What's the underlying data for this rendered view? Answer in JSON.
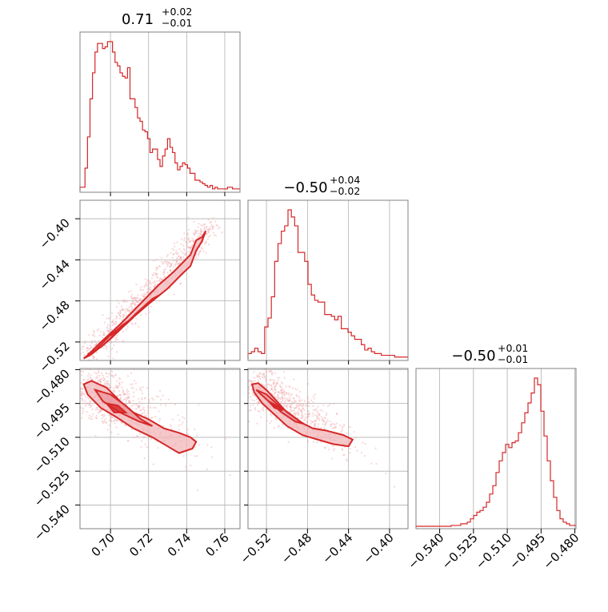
{
  "chart_data": {
    "type": "corner",
    "color": "#d62728",
    "fill_color": "#f2b6b8",
    "grid": true,
    "parameters": 3,
    "titles": [
      {
        "main": "0.71",
        "sup": "+0.02",
        "sub": "−0.01"
      },
      {
        "main": "−0.50",
        "sup": "+0.04",
        "sub": "−0.02"
      },
      {
        "main": "−0.50",
        "sup": "+0.01",
        "sub": "−0.01"
      }
    ],
    "ranges": [
      [
        0.684,
        0.768
      ],
      [
        -0.538,
        -0.382
      ],
      [
        -0.5505,
        -0.4795
      ]
    ],
    "ticks": [
      [
        {
          "v": 0.7,
          "l": "0.70"
        },
        {
          "v": 0.72,
          "l": "0.72"
        },
        {
          "v": 0.74,
          "l": "0.74"
        },
        {
          "v": 0.76,
          "l": "0.76"
        }
      ],
      [
        {
          "v": -0.52,
          "l": "−0.52"
        },
        {
          "v": -0.48,
          "l": "−0.48"
        },
        {
          "v": -0.44,
          "l": "−0.44"
        },
        {
          "v": -0.4,
          "l": "−0.40"
        }
      ],
      [
        {
          "v": -0.54,
          "l": "−0.540"
        },
        {
          "v": -0.525,
          "l": "−0.525"
        },
        {
          "v": -0.51,
          "l": "−0.510"
        },
        {
          "v": -0.495,
          "l": "−0.495"
        },
        {
          "v": -0.48,
          "l": "−0.480"
        }
      ]
    ],
    "hist1": {
      "edges_from": 0.684,
      "edges_to": 0.768,
      "counts": [
        0.02,
        0.02,
        0.13,
        0.31,
        0.53,
        0.68,
        0.8,
        0.85,
        0.85,
        0.82,
        0.83,
        0.86,
        0.86,
        0.8,
        0.74,
        0.72,
        0.68,
        0.66,
        0.65,
        0.71,
        0.53,
        0.53,
        0.48,
        0.42,
        0.4,
        0.35,
        0.34,
        0.3,
        0.22,
        0.24,
        0.24,
        0.18,
        0.14,
        0.2,
        0.24,
        0.3,
        0.25,
        0.22,
        0.16,
        0.12,
        0.14,
        0.16,
        0.15,
        0.13,
        0.1,
        0.1,
        0.06,
        0.06,
        0.05,
        0.04,
        0.03,
        0.02,
        0.03,
        0.01,
        0.02,
        0.01,
        0.01,
        0.01,
        0.01,
        0.02,
        0.02,
        0.01,
        0.01,
        0.01
      ]
    },
    "hist2": {
      "edges_from": -0.538,
      "edges_to": -0.382,
      "counts": [
        0.03,
        0.04,
        0.06,
        0.04,
        0.03,
        0.18,
        0.23,
        0.35,
        0.55,
        0.65,
        0.72,
        0.75,
        0.84,
        0.8,
        0.75,
        0.6,
        0.6,
        0.55,
        0.42,
        0.36,
        0.33,
        0.32,
        0.32,
        0.25,
        0.25,
        0.24,
        0.22,
        0.24,
        0.17,
        0.17,
        0.15,
        0.13,
        0.11,
        0.11,
        0.08,
        0.05,
        0.06,
        0.04,
        0.03,
        0.03,
        0.02,
        0.02,
        0.02,
        0.02,
        0.01,
        0.01,
        0.01,
        0.01
      ]
    },
    "hist3": {
      "edges_from": -0.5505,
      "edges_to": -0.4795,
      "counts": [
        0.005,
        0.005,
        0.005,
        0.005,
        0.005,
        0.005,
        0.005,
        0.005,
        0.005,
        0.005,
        0.005,
        0.01,
        0.01,
        0.01,
        0.02,
        0.02,
        0.03,
        0.05,
        0.07,
        0.09,
        0.1,
        0.12,
        0.15,
        0.2,
        0.25,
        0.33,
        0.4,
        0.45,
        0.5,
        0.48,
        0.51,
        0.52,
        0.57,
        0.63,
        0.69,
        0.75,
        0.81,
        0.9,
        0.86,
        0.7,
        0.55,
        0.4,
        0.28,
        0.18,
        0.1,
        0.05,
        0.03,
        0.02,
        0.01,
        0.01
      ]
    },
    "scatter_p1_p2": {
      "x_label_param": 0,
      "y_label_param": 1,
      "trend": {
        "x0": 0.684,
        "y0": -0.537,
        "x1": 0.751,
        "y1": -0.41
      },
      "outer_contour": [
        [
          0.686,
          -0.536
        ],
        [
          0.69,
          -0.532
        ],
        [
          0.7,
          -0.517
        ],
        [
          0.71,
          -0.499
        ],
        [
          0.72,
          -0.483
        ],
        [
          0.73,
          -0.468
        ],
        [
          0.738,
          -0.453
        ],
        [
          0.742,
          -0.446
        ],
        [
          0.745,
          -0.431
        ],
        [
          0.748,
          -0.422
        ],
        [
          0.75,
          -0.412
        ],
        [
          0.748,
          -0.418
        ],
        [
          0.745,
          -0.421
        ],
        [
          0.742,
          -0.435
        ],
        [
          0.733,
          -0.452
        ],
        [
          0.725,
          -0.465
        ],
        [
          0.715,
          -0.484
        ],
        [
          0.705,
          -0.503
        ],
        [
          0.695,
          -0.52
        ],
        [
          0.688,
          -0.533
        ]
      ],
      "inner_contour": [
        [
          0.688,
          -0.532
        ],
        [
          0.695,
          -0.525
        ],
        [
          0.705,
          -0.508
        ],
        [
          0.713,
          -0.493
        ],
        [
          0.722,
          -0.478
        ],
        [
          0.726,
          -0.474
        ],
        [
          0.72,
          -0.482
        ],
        [
          0.71,
          -0.499
        ],
        [
          0.7,
          -0.513
        ],
        [
          0.692,
          -0.528
        ]
      ],
      "core_contour": [
        [
          0.7,
          -0.514
        ],
        [
          0.706,
          -0.504
        ],
        [
          0.712,
          -0.496
        ],
        [
          0.708,
          -0.503
        ],
        [
          0.702,
          -0.511
        ]
      ]
    },
    "scatter_p1_p3": {
      "x_label_param": 0,
      "y_label_param": 2,
      "outer_contour": [
        [
          0.686,
          -0.4865
        ],
        [
          0.69,
          -0.485
        ],
        [
          0.698,
          -0.488
        ],
        [
          0.705,
          -0.494
        ],
        [
          0.712,
          -0.499
        ],
        [
          0.72,
          -0.502
        ],
        [
          0.728,
          -0.506
        ],
        [
          0.736,
          -0.508
        ],
        [
          0.742,
          -0.51
        ],
        [
          0.745,
          -0.512
        ],
        [
          0.743,
          -0.515
        ],
        [
          0.736,
          -0.517
        ],
        [
          0.73,
          -0.514
        ],
        [
          0.722,
          -0.51
        ],
        [
          0.712,
          -0.506
        ],
        [
          0.703,
          -0.501
        ],
        [
          0.695,
          -0.497
        ],
        [
          0.688,
          -0.491
        ]
      ],
      "inner_contour": [
        [
          0.692,
          -0.489
        ],
        [
          0.7,
          -0.491
        ],
        [
          0.708,
          -0.496
        ],
        [
          0.716,
          -0.502
        ],
        [
          0.722,
          -0.505
        ],
        [
          0.715,
          -0.503
        ],
        [
          0.705,
          -0.499
        ],
        [
          0.696,
          -0.494
        ]
      ],
      "core_contour": [
        [
          0.698,
          -0.495
        ],
        [
          0.704,
          -0.496
        ],
        [
          0.708,
          -0.499
        ],
        [
          0.702,
          -0.499
        ]
      ]
    },
    "scatter_p2_p3": {
      "x_label_param": 1,
      "y_label_param": 2,
      "outer_contour": [
        [
          -0.534,
          -0.4865
        ],
        [
          -0.528,
          -0.486
        ],
        [
          -0.52,
          -0.489
        ],
        [
          -0.51,
          -0.494
        ],
        [
          -0.5,
          -0.499
        ],
        [
          -0.488,
          -0.503
        ],
        [
          -0.475,
          -0.506
        ],
        [
          -0.462,
          -0.507
        ],
        [
          -0.445,
          -0.509
        ],
        [
          -0.436,
          -0.511
        ],
        [
          -0.44,
          -0.514
        ],
        [
          -0.455,
          -0.513
        ],
        [
          -0.47,
          -0.511
        ],
        [
          -0.485,
          -0.509
        ],
        [
          -0.5,
          -0.505
        ],
        [
          -0.512,
          -0.5
        ],
        [
          -0.524,
          -0.495
        ],
        [
          -0.532,
          -0.49
        ]
      ],
      "inner_contour": [
        [
          -0.53,
          -0.489
        ],
        [
          -0.52,
          -0.491
        ],
        [
          -0.508,
          -0.496
        ],
        [
          -0.496,
          -0.5
        ],
        [
          -0.484,
          -0.504
        ],
        [
          -0.492,
          -0.503
        ],
        [
          -0.505,
          -0.499
        ],
        [
          -0.518,
          -0.494
        ]
      ],
      "core_contour": [
        [
          -0.518,
          -0.494
        ],
        [
          -0.51,
          -0.496
        ],
        [
          -0.504,
          -0.498
        ],
        [
          -0.512,
          -0.497
        ]
      ]
    }
  }
}
